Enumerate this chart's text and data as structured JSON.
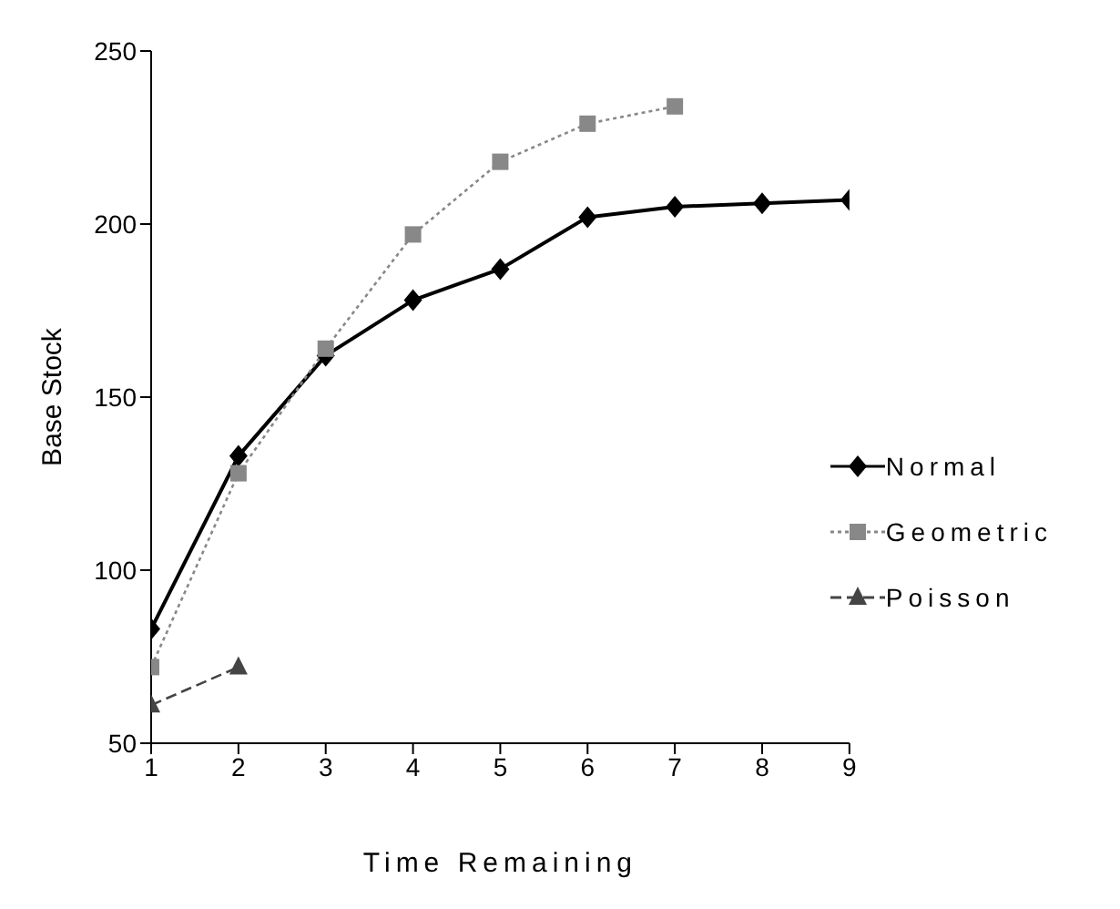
{
  "chart_data": {
    "type": "line",
    "xlabel": "Time Remaining",
    "ylabel": "Base Stock",
    "x": [
      1,
      2,
      3,
      4,
      5,
      6,
      7,
      8,
      9
    ],
    "series": [
      {
        "name": "Normal",
        "color": "#000000",
        "marker": "diamond",
        "line_style": "solid",
        "values": [
          83,
          133,
          162,
          178,
          187,
          202,
          205,
          206,
          207
        ]
      },
      {
        "name": "Geometric",
        "color": "#888888",
        "marker": "square",
        "line_style": "dotted",
        "values": [
          72,
          128,
          164,
          197,
          218,
          229,
          234,
          null,
          null
        ]
      },
      {
        "name": "Poisson",
        "color": "#444444",
        "marker": "triangle",
        "line_style": "dashed",
        "values": [
          61,
          72,
          null,
          null,
          null,
          null,
          null,
          null,
          null
        ]
      }
    ],
    "xlim": [
      1,
      9
    ],
    "xticks": [
      1,
      2,
      3,
      4,
      5,
      6,
      7,
      8,
      9
    ],
    "ylim": [
      50,
      250
    ],
    "yticks": [
      50,
      100,
      150,
      200,
      250
    ],
    "grid": false,
    "legend": "right"
  }
}
